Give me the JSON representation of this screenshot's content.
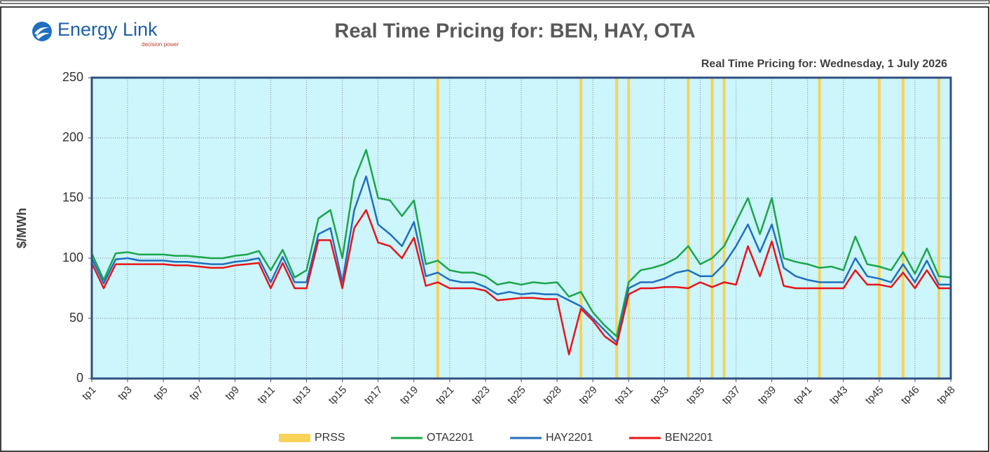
{
  "logo": {
    "name": "Energy Link",
    "tagline": "decision power"
  },
  "chart_data": {
    "type": "line",
    "title": "Real Time Pricing for: BEN, HAY, OTA",
    "subtitle": "Real Time Pricing for: Wednesday, 1 July 2026",
    "y_label": "$/MWh",
    "categories": [
      "tp1",
      null,
      null,
      "tp3",
      null,
      null,
      "tp5",
      null,
      null,
      "tp7",
      null,
      null,
      "tp9",
      null,
      null,
      "tp11",
      null,
      null,
      "tp13",
      null,
      null,
      "tp15",
      null,
      null,
      "tp17",
      null,
      null,
      "tp19",
      null,
      null,
      "tp21",
      null,
      null,
      "tp23",
      null,
      null,
      "tp25",
      null,
      null,
      "tp28",
      null,
      null,
      "tp29",
      null,
      null,
      "tp31",
      null,
      null,
      "tp33",
      null,
      null,
      "tp35",
      null,
      null,
      "tp37",
      null,
      null,
      "tp39",
      null,
      null,
      "tp41",
      null,
      null,
      "tp43",
      null,
      null,
      "tp45",
      null,
      null,
      "tp46",
      null,
      null,
      "tp48"
    ],
    "ylim": [
      0,
      250
    ],
    "yticks": [
      0,
      50,
      100,
      150,
      200,
      250
    ],
    "grid": true,
    "legend": "bottom",
    "bar_series": {
      "name": "PRSS",
      "color": "#f7d358",
      "values": [
        null,
        null,
        null,
        null,
        null,
        null,
        null,
        null,
        null,
        null,
        null,
        null,
        null,
        null,
        null,
        null,
        null,
        null,
        null,
        null,
        null,
        null,
        null,
        null,
        null,
        null,
        null,
        null,
        null,
        250,
        null,
        null,
        null,
        null,
        null,
        null,
        null,
        null,
        null,
        null,
        null,
        250,
        null,
        null,
        250,
        250,
        null,
        null,
        null,
        null,
        250,
        null,
        250,
        250,
        null,
        null,
        null,
        null,
        null,
        null,
        null,
        250,
        null,
        null,
        null,
        null,
        250,
        null,
        250,
        null,
        null,
        250,
        null
      ]
    },
    "series": [
      {
        "name": "OTA2201",
        "color": "#1aa64a",
        "values": [
          104,
          82,
          104,
          105,
          103,
          103,
          103,
          102,
          102,
          101,
          100,
          100,
          102,
          103,
          106,
          90,
          107,
          84,
          90,
          133,
          140,
          100,
          165,
          190,
          150,
          148,
          135,
          148,
          95,
          98,
          90,
          88,
          88,
          85,
          78,
          80,
          78,
          80,
          79,
          80,
          68,
          72,
          55,
          44,
          35,
          80,
          90,
          92,
          95,
          100,
          110,
          95,
          100,
          110,
          130,
          150,
          120,
          150,
          100,
          97,
          95,
          92,
          93,
          90,
          118,
          95,
          93,
          90,
          105,
          87,
          108,
          85,
          84
        ]
      },
      {
        "name": "HAY2201",
        "color": "#1f6fbf",
        "values": [
          100,
          79,
          99,
          100,
          98,
          98,
          98,
          97,
          97,
          96,
          95,
          95,
          97,
          98,
          100,
          80,
          101,
          80,
          80,
          120,
          125,
          80,
          140,
          168,
          128,
          120,
          110,
          130,
          85,
          88,
          82,
          80,
          80,
          76,
          70,
          72,
          70,
          71,
          70,
          70,
          65,
          60,
          50,
          40,
          30,
          75,
          80,
          80,
          83,
          88,
          90,
          85,
          85,
          95,
          110,
          128,
          105,
          128,
          92,
          85,
          82,
          80,
          80,
          80,
          100,
          85,
          83,
          80,
          95,
          80,
          98,
          78,
          78
        ]
      },
      {
        "name": "BEN2201",
        "color": "#e8141a",
        "values": [
          96,
          75,
          95,
          95,
          95,
          95,
          95,
          94,
          94,
          93,
          92,
          92,
          94,
          95,
          96,
          75,
          96,
          75,
          75,
          115,
          115,
          75,
          125,
          140,
          113,
          110,
          100,
          117,
          77,
          80,
          75,
          75,
          75,
          73,
          65,
          66,
          67,
          67,
          66,
          66,
          20,
          58,
          48,
          35,
          28,
          70,
          75,
          75,
          76,
          76,
          75,
          80,
          76,
          80,
          78,
          110,
          85,
          114,
          77,
          75,
          75,
          75,
          75,
          75,
          90,
          78,
          78,
          76,
          88,
          75,
          90,
          75,
          75
        ]
      }
    ]
  }
}
